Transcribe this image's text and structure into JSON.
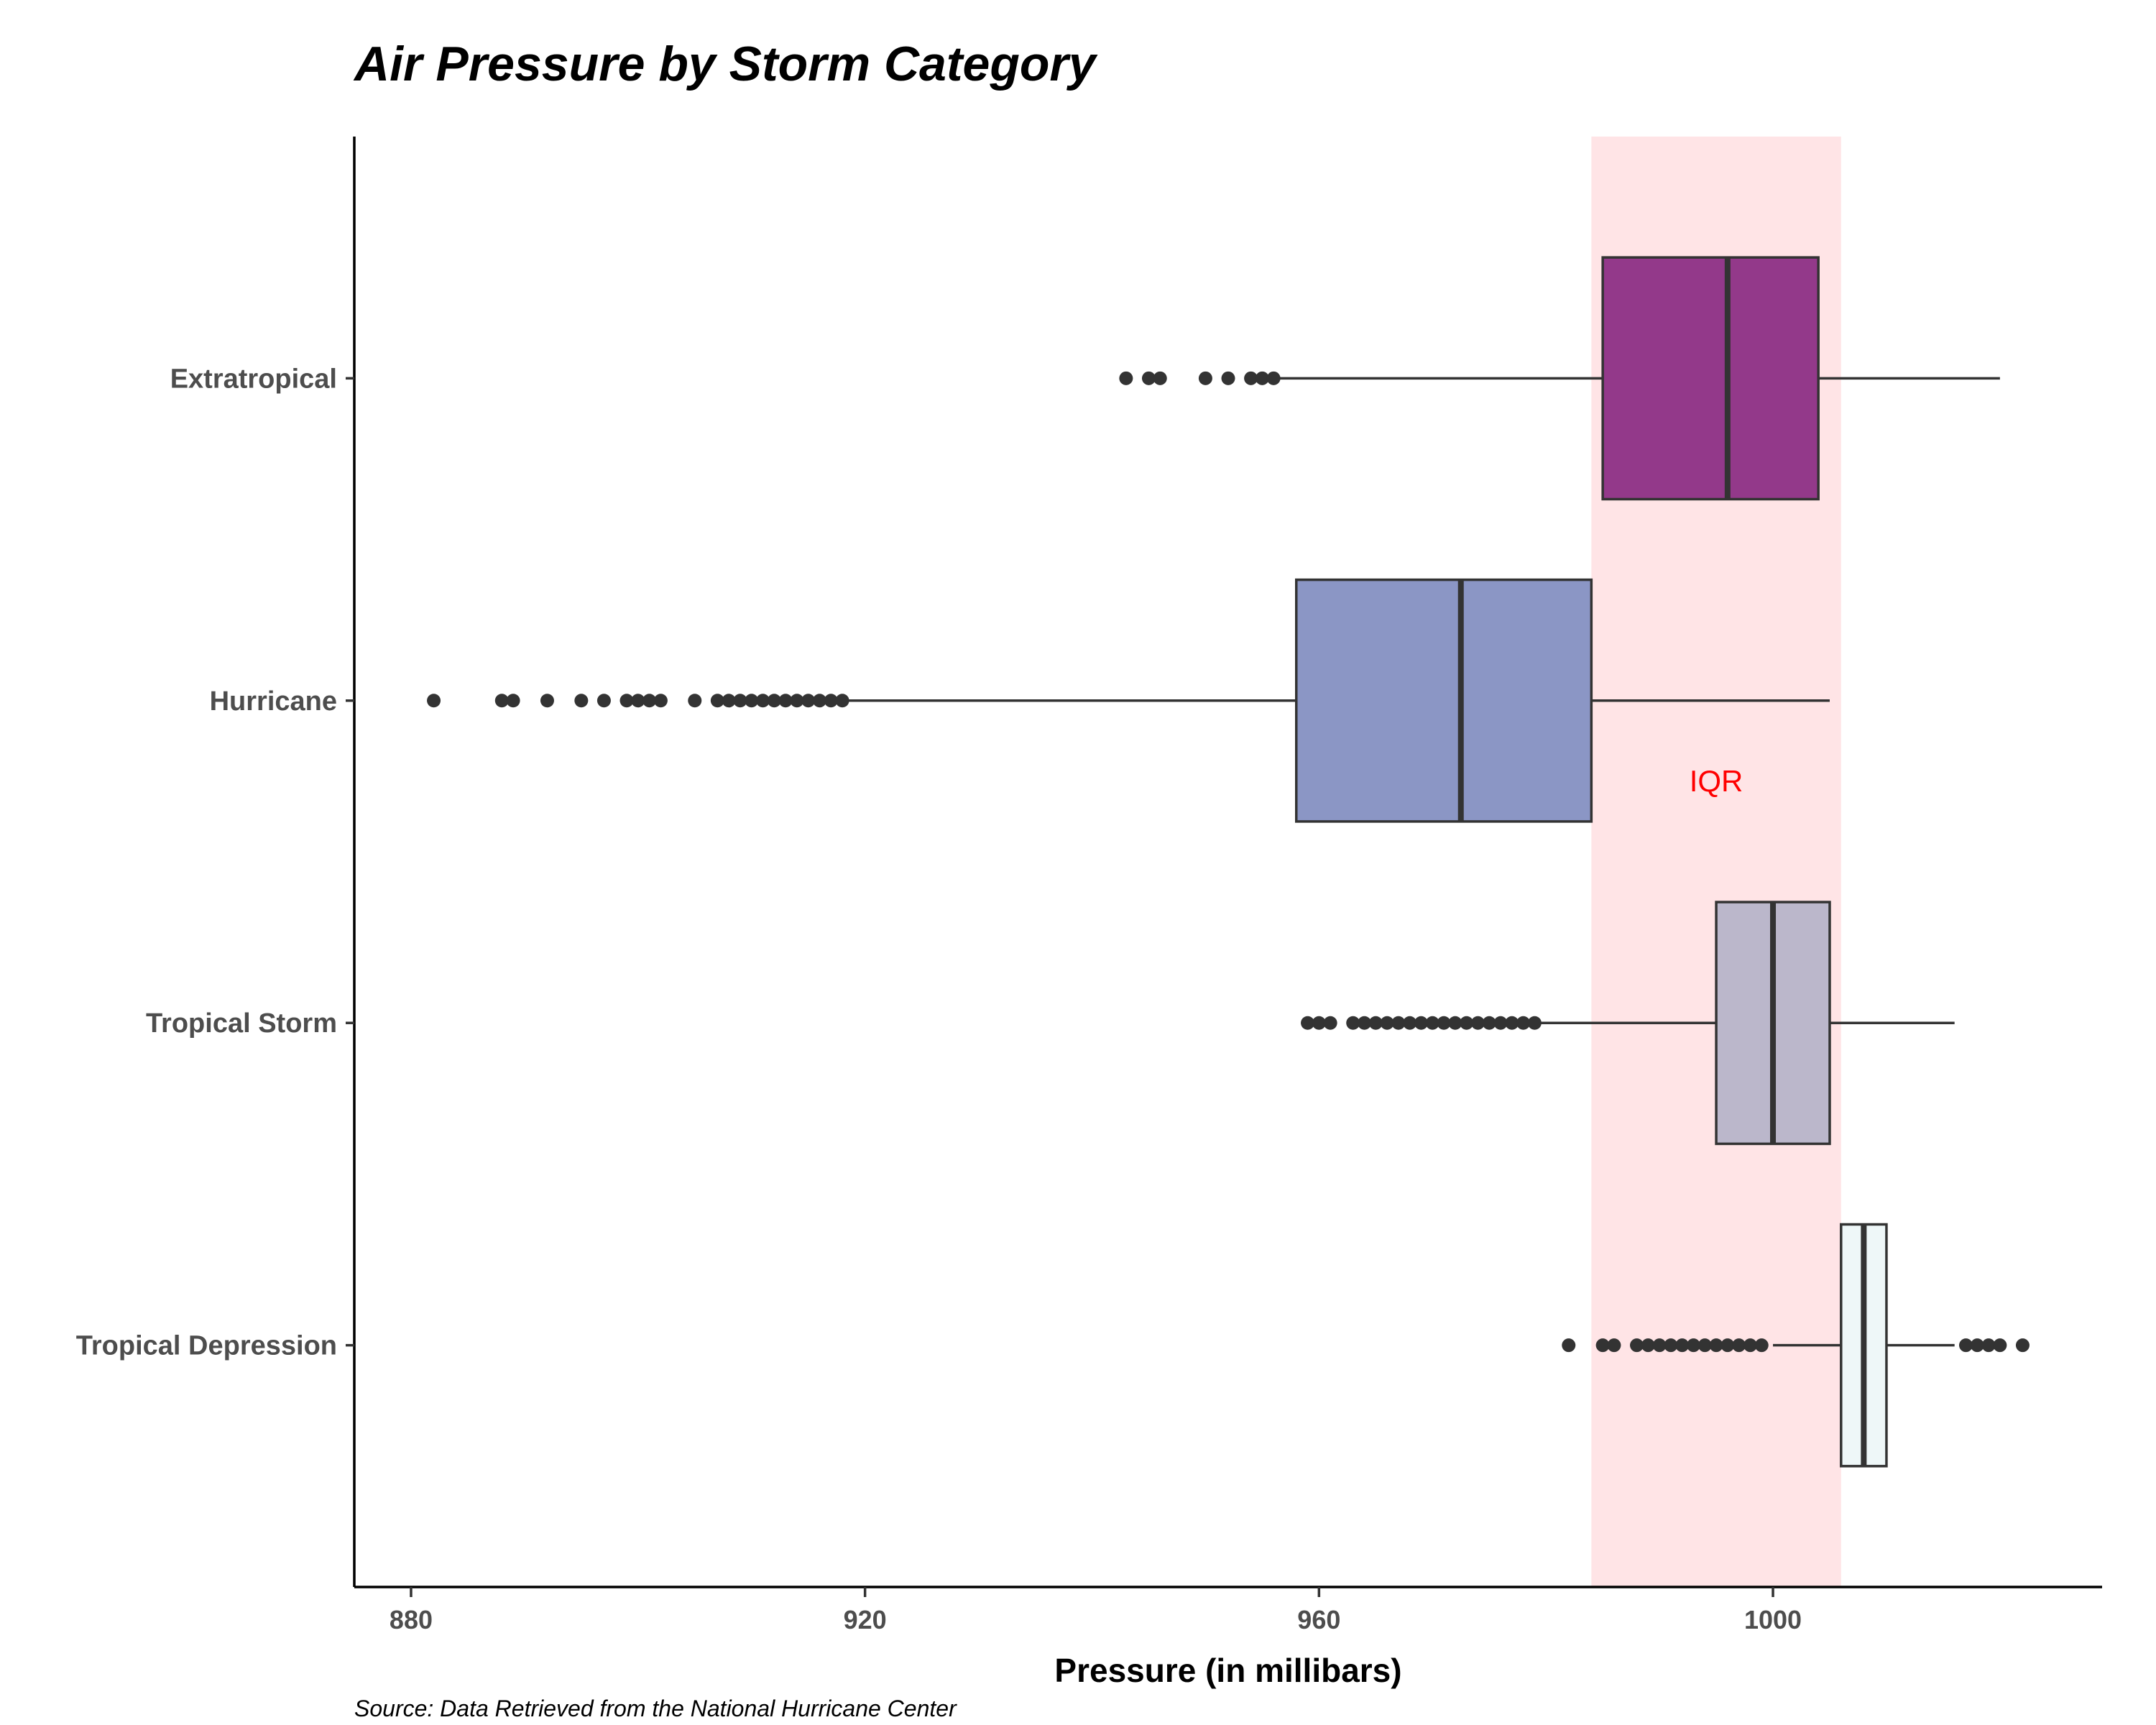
{
  "chart_data": {
    "type": "boxplot",
    "orientation": "horizontal",
    "title": "Air Pressure by Storm Category",
    "xlabel": "Pressure (in millibars)",
    "ylabel": "",
    "caption": "Source: Data Retrieved from the National Hurricane Center",
    "xlim": [
      875,
      1029
    ],
    "x_ticks": [
      880,
      920,
      960,
      1000
    ],
    "grid": false,
    "legend": "none",
    "highlight_band": {
      "label": "IQR",
      "x_range": [
        984,
        1006
      ],
      "fill_color": "#ffe4e6",
      "label_color": "#ff0000",
      "label_x": 995
    },
    "categories": [
      "Extratropical",
      "Hurricane",
      "Tropical Storm",
      "Tropical Depression"
    ],
    "series": [
      {
        "category": "Extratropical",
        "whisker_low": 956.5,
        "q1": 985,
        "median": 996,
        "q3": 1004,
        "whisker_high": 1020,
        "outliers": [
          943,
          945,
          946,
          950,
          952,
          954,
          955,
          956
        ],
        "fill_color": "#93398a"
      },
      {
        "category": "Hurricane",
        "whisker_low": 918.5,
        "q1": 958,
        "median": 972.5,
        "q3": 984,
        "whisker_high": 1005,
        "outliers": [
          882,
          888,
          889,
          892,
          895,
          897,
          899,
          900,
          901,
          902,
          905,
          907,
          908,
          909,
          910,
          911,
          912,
          913,
          914,
          915,
          916,
          917,
          918
        ],
        "fill_color": "#8b96c5"
      },
      {
        "category": "Tropical Storm",
        "whisker_low": 979.5,
        "q1": 995,
        "median": 1000,
        "q3": 1005,
        "whisker_high": 1016,
        "outliers": [
          959,
          960,
          961,
          963,
          964,
          965,
          966,
          967,
          968,
          969,
          970,
          971,
          972,
          973,
          974,
          975,
          976,
          977,
          978,
          979
        ],
        "fill_color": "#bbb7cb"
      },
      {
        "category": "Tropical Depression",
        "whisker_low": 1000,
        "q1": 1006,
        "median": 1008,
        "q3": 1010,
        "whisker_high": 1016,
        "outliers": [
          982,
          985,
          986,
          988,
          989,
          990,
          991,
          992,
          993,
          994,
          995,
          996,
          997,
          998,
          999,
          1017,
          1018,
          1019,
          1020,
          1022
        ],
        "fill_color": "#eef7f8"
      }
    ]
  }
}
